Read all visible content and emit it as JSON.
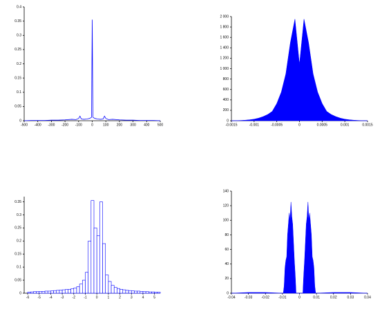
{
  "chart_data": [
    {
      "type": "line",
      "color": "#0000ff",
      "x": [
        -500,
        -450,
        -400,
        -350,
        -300,
        -250,
        -200,
        -150,
        -120,
        -100,
        -90,
        -80,
        -60,
        -40,
        -20,
        -5,
        0,
        5,
        20,
        40,
        60,
        80,
        90,
        100,
        120,
        150,
        200,
        250,
        300,
        350,
        400,
        450,
        500
      ],
      "values": [
        0,
        0.001,
        0.001,
        0.001,
        0.002,
        0.002,
        0.003,
        0.005,
        0.004,
        0.008,
        0.016,
        0.006,
        0.005,
        0.006,
        0.008,
        0.012,
        0.355,
        0.012,
        0.008,
        0.006,
        0.005,
        0.006,
        0.016,
        0.008,
        0.004,
        0.005,
        0.003,
        0.002,
        0.002,
        0.001,
        0.001,
        0.001,
        0
      ],
      "xlim": [
        -500,
        500
      ],
      "ylim": [
        0,
        0.4
      ],
      "xticks": [
        -500,
        -400,
        -300,
        -200,
        -100,
        0,
        100,
        200,
        300,
        400,
        500
      ],
      "yticks": [
        0,
        0.05,
        0.1,
        0.15,
        0.2,
        0.25,
        0.3,
        0.35,
        0.4
      ]
    },
    {
      "type": "area",
      "color": "#0000ff",
      "x": [
        -0.0015,
        -0.0014,
        -0.0013,
        -0.0012,
        -0.0011,
        -0.001,
        -0.0009,
        -0.0008,
        -0.0007,
        -0.0006,
        -0.0005,
        -0.0004,
        -0.0003,
        -0.0002,
        -0.0001,
        0,
        0.0001,
        0.0002,
        0.0003,
        0.0004,
        0.0005,
        0.0006,
        0.0007,
        0.0008,
        0.0009,
        0.001,
        0.0011,
        0.0012,
        0.0013,
        0.0014,
        0.0015
      ],
      "values": [
        0,
        2,
        5,
        10,
        18,
        30,
        50,
        80,
        120,
        180,
        330,
        550,
        900,
        1500,
        1950,
        1080,
        1950,
        1500,
        900,
        550,
        330,
        180,
        120,
        80,
        50,
        30,
        18,
        10,
        5,
        2,
        0
      ],
      "xlim": [
        -0.0015,
        0.0015
      ],
      "ylim": [
        0,
        2000
      ],
      "xticks": [
        -0.0015,
        -0.001,
        -0.0005,
        0,
        0.0005,
        0.001,
        0.0015
      ],
      "yticks": [
        0,
        200,
        400,
        600,
        800,
        {
          "value": 1000,
          "label": "1 000"
        },
        {
          "value": 1200,
          "label": "1 200"
        },
        {
          "value": 1400,
          "label": "1 400"
        },
        {
          "value": 1600,
          "label": "1 600"
        },
        {
          "value": 1800,
          "label": "1 800"
        },
        {
          "value": 2000,
          "label": "2 000"
        }
      ]
    },
    {
      "type": "histogram",
      "color": "#0000ff",
      "bins": [
        -6,
        -5.75,
        -5.5,
        -5.25,
        -5,
        -4.75,
        -4.5,
        -4.25,
        -4,
        -3.75,
        -3.5,
        -3.25,
        -3,
        -2.75,
        -2.5,
        -2.25,
        -2,
        -1.75,
        -1.5,
        -1.25,
        -1,
        -0.75,
        -0.5,
        -0.25,
        0,
        0.25,
        0.5,
        0.75,
        1,
        1.25,
        1.5,
        1.75,
        2,
        2.25,
        2.5,
        2.75,
        3,
        3.25,
        3.5,
        3.75,
        4,
        4.25,
        4.5,
        4.75,
        5,
        5.25,
        5.5
      ],
      "values": [
        0.004,
        0.005,
        0.006,
        0.006,
        0.007,
        0.007,
        0.008,
        0.008,
        0.009,
        0.01,
        0.011,
        0.012,
        0.013,
        0.014,
        0.015,
        0.017,
        0.02,
        0.025,
        0.035,
        0.05,
        0.08,
        0.2,
        0.355,
        0.25,
        0.22,
        0.35,
        0.19,
        0.07,
        0.045,
        0.03,
        0.022,
        0.018,
        0.015,
        0.013,
        0.011,
        0.01,
        0.009,
        0.008,
        0.008,
        0.007,
        0.006,
        0.006,
        0.005,
        0.005,
        0.004,
        0.004
      ],
      "xlim": [
        -6.3,
        5.5
      ],
      "ylim": [
        0,
        0.37
      ],
      "xticks": [
        -6,
        -5,
        -4,
        -3,
        -2,
        -1,
        0,
        1,
        2,
        3,
        4,
        5
      ],
      "yticks": [
        0,
        0.05,
        0.1,
        0.15,
        0.2,
        0.25,
        0.3,
        0.35
      ]
    },
    {
      "type": "area",
      "color": "#0000ff",
      "x": [
        -0.04,
        -0.03,
        -0.02,
        -0.0095,
        -0.009,
        -0.0085,
        -0.008,
        -0.0075,
        -0.007,
        -0.0065,
        -0.006,
        -0.0055,
        -0.005,
        -0.0045,
        -0.004,
        -0.0035,
        -0.003,
        -0.0025,
        -0.002,
        0,
        0.002,
        0.0025,
        0.003,
        0.0035,
        0.004,
        0.0045,
        0.005,
        0.0055,
        0.006,
        0.0065,
        0.007,
        0.0075,
        0.008,
        0.0085,
        0.009,
        0.0095,
        0.02,
        0.03,
        0.04
      ],
      "values": [
        0,
        1,
        1,
        0,
        10,
        35,
        45,
        50,
        80,
        95,
        110,
        100,
        125,
        105,
        95,
        70,
        45,
        25,
        0,
        0,
        0,
        25,
        45,
        70,
        95,
        105,
        125,
        100,
        110,
        95,
        80,
        50,
        45,
        35,
        10,
        0,
        1,
        1,
        0
      ],
      "xlim": [
        -0.04,
        0.04
      ],
      "ylim": [
        0,
        140
      ],
      "xticks": [
        -0.04,
        -0.03,
        -0.02,
        -0.01,
        0,
        0.01,
        0.02,
        0.03,
        0.04
      ],
      "yticks": [
        0,
        20,
        40,
        60,
        80,
        100,
        120,
        140
      ]
    }
  ]
}
